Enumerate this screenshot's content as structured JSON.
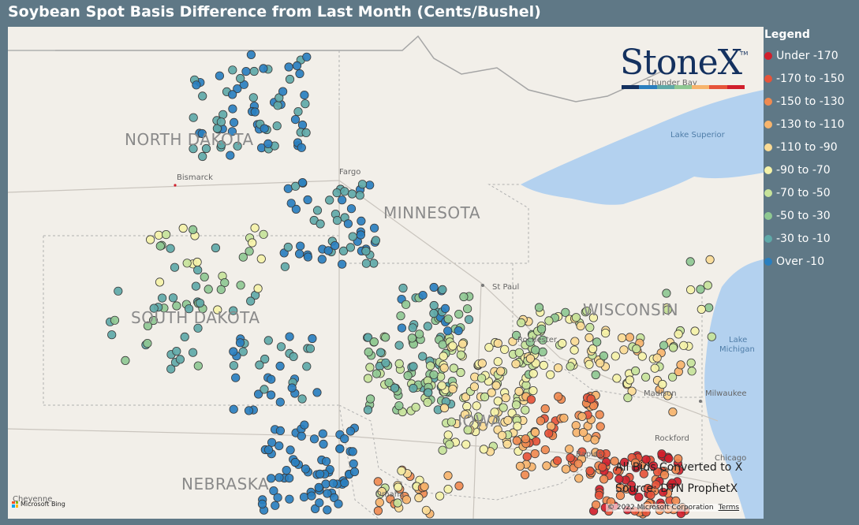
{
  "title": "Soybean Spot Basis Difference from Last Month (Cents/Bushel)",
  "legend": {
    "title": "Legend",
    "items": [
      {
        "label": "Under -170",
        "color": "#d11f2c"
      },
      {
        "label": "-170 to -150",
        "color": "#e6543a"
      },
      {
        "label": "-150 to -130",
        "color": "#f08a50"
      },
      {
        "label": "-130 to -110",
        "color": "#f7b46c"
      },
      {
        "label": "-110 to -90",
        "color": "#fbdb95"
      },
      {
        "label": "-90 to -70",
        "color": "#f5f2a8"
      },
      {
        "label": "-70 to -50",
        "color": "#c7e39a"
      },
      {
        "label": "-50 to -30",
        "color": "#8fc892"
      },
      {
        "label": "-30 to -10",
        "color": "#5fa9a8"
      },
      {
        "label": "Over -10",
        "color": "#2a7fbf"
      }
    ]
  },
  "map": {
    "states": {
      "north_dakota": "NORTH DAKOTA",
      "south_dakota": "SOUTH DAKOTA",
      "minnesota": "MINNESOTA",
      "wisconsin": "WISCONSIN",
      "nebraska": "NEBRASKA",
      "iowa": "IOWA"
    },
    "cities": {
      "bismarck": "Bismarck",
      "fargo": "Fargo",
      "st_paul": "St Paul",
      "rochester": "Rochester",
      "madison": "Madison",
      "milwaukee": "Milwaukee",
      "rockford": "Rockford",
      "chicago": "Chicago",
      "cedar_rapids": "Rapids",
      "omaha": "Omaha",
      "cheyenne": "Cheyenne",
      "thunder_bay": "Thunder Bay"
    },
    "water": {
      "lake_superior": "Lake Superior",
      "lake_michigan_1": "Lake",
      "lake_michigan_2": "Michigan"
    }
  },
  "logo": {
    "text": "StoneX",
    "tm": "TM",
    "bar_colors": [
      "#14315f",
      "#2a7fbf",
      "#5fa9a8",
      "#8fc892",
      "#f7b46c",
      "#e6543a",
      "#d11f2c"
    ]
  },
  "source": {
    "line1": "All Bids Converted to X",
    "line2": "Source: DTN ProphetX"
  },
  "copyright": "© 2022 Microsoft Corporation",
  "terms": "Terms",
  "bing": "Microsoft Bing",
  "bing_colors": [
    "#f25022",
    "#7fba00",
    "#00a4ef",
    "#ffb900"
  ]
}
